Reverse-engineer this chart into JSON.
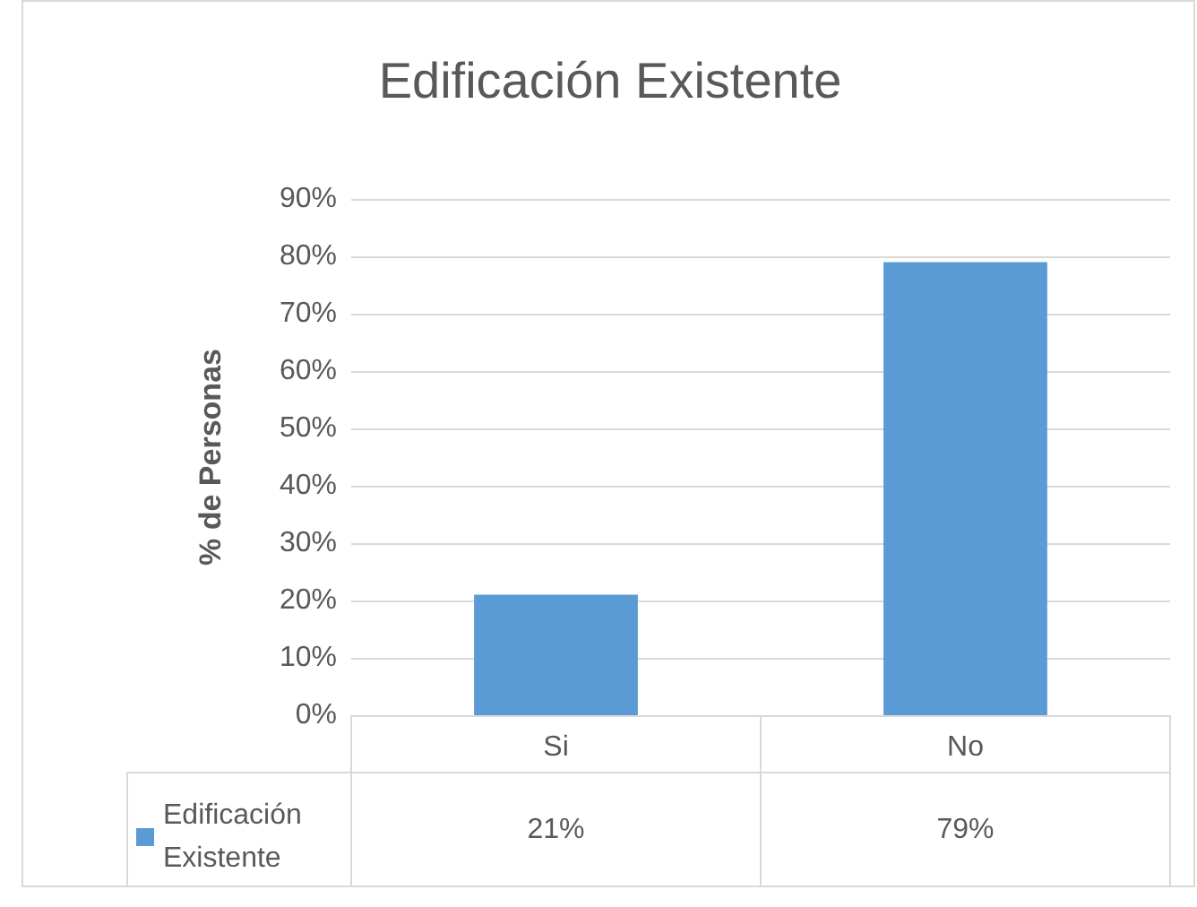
{
  "chart_data": {
    "type": "bar",
    "title": "Edificación Existente",
    "ylabel": "% de Personas",
    "categories": [
      "Si",
      "No"
    ],
    "series": [
      {
        "name": "Edificación Existente",
        "color": "#5b9bd5",
        "values": [
          21,
          79
        ],
        "value_labels": [
          "21%",
          "79%"
        ]
      }
    ],
    "ylim": [
      0,
      90
    ],
    "yticks": [
      {
        "value": 0,
        "label": "0%"
      },
      {
        "value": 10,
        "label": "10%"
      },
      {
        "value": 20,
        "label": "20%"
      },
      {
        "value": 30,
        "label": "30%"
      },
      {
        "value": 40,
        "label": "40%"
      },
      {
        "value": 50,
        "label": "50%"
      },
      {
        "value": 60,
        "label": "60%"
      },
      {
        "value": 70,
        "label": "70%"
      },
      {
        "value": 80,
        "label": "80%"
      },
      {
        "value": 90,
        "label": "90%"
      }
    ],
    "grid": "y",
    "legend": "bottom left"
  }
}
